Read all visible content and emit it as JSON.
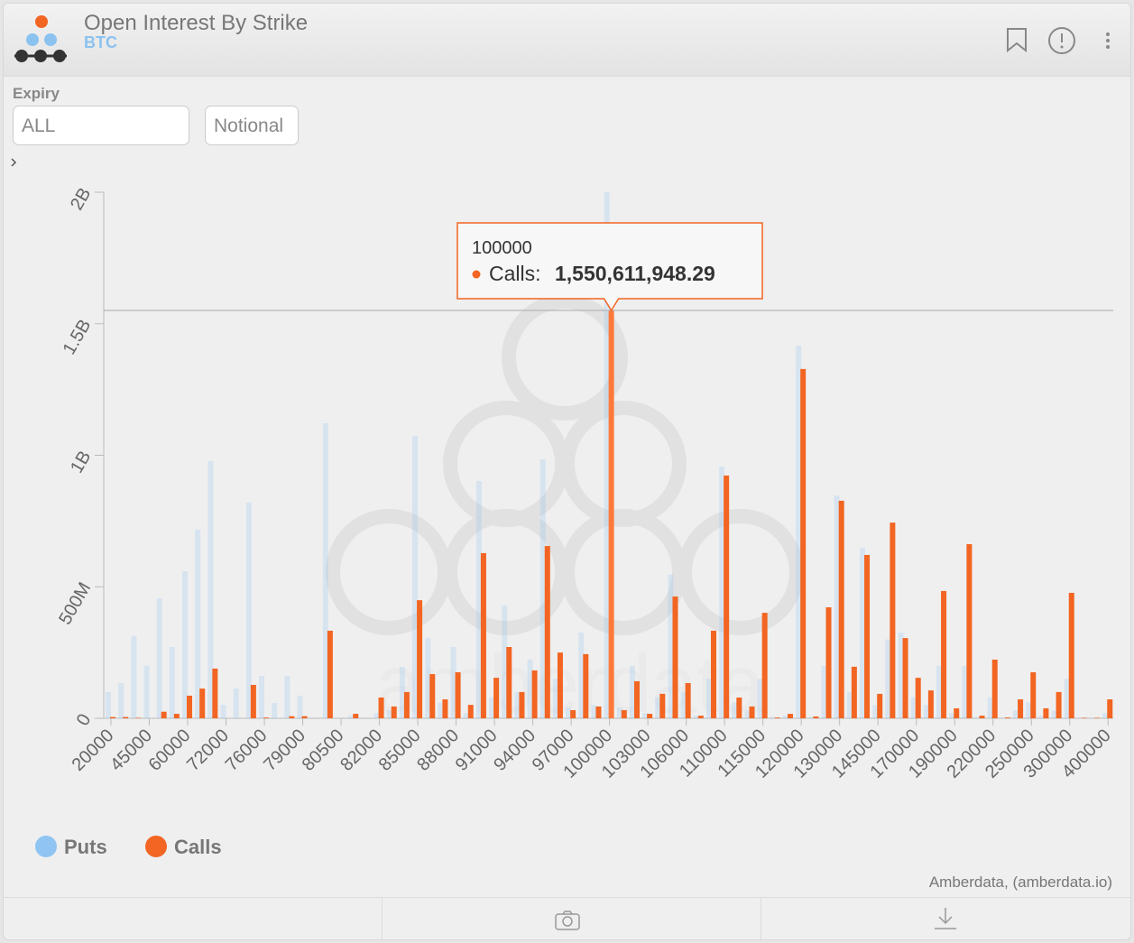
{
  "header": {
    "title": "Open Interest By Strike",
    "subtitle": "BTC"
  },
  "controls": {
    "expiry_label": "Expiry",
    "expiry_value": "ALL",
    "mode": "Notional"
  },
  "watermark": "amberdata",
  "credit": "Amberdata, (amberdata.io)",
  "chart_data": {
    "type": "bar",
    "categories": [
      "20000",
      null,
      null,
      "45000",
      null,
      null,
      "60000",
      null,
      null,
      "72000",
      null,
      null,
      "76000",
      null,
      null,
      "79000",
      null,
      null,
      "80500",
      null,
      null,
      "82000",
      null,
      null,
      "85000",
      null,
      null,
      "88000",
      null,
      null,
      "91000",
      null,
      null,
      "94000",
      null,
      null,
      "97000",
      null,
      null,
      "100000",
      null,
      null,
      "103000",
      null,
      null,
      "106000",
      null,
      null,
      "110000",
      null,
      null,
      "115000",
      null,
      null,
      "120000",
      null,
      null,
      "130000",
      null,
      null,
      "145000",
      null,
      null,
      "170000",
      null,
      null,
      "190000",
      null,
      null,
      "220000",
      null,
      null,
      "250000",
      null,
      null,
      "300000",
      null,
      null,
      "400000"
    ],
    "series": [
      {
        "name": "Puts",
        "color": "#90c4f2",
        "values": [
          100000000.0,
          134000000.0,
          313000000.0,
          200000000.0,
          456000000.0,
          271000000.0,
          559000000.0,
          717000000.0,
          978000000.0,
          51000000.0,
          113000000.0,
          820000000.0,
          161000000.0,
          58000000.0,
          161000000.0,
          86000000.0,
          0,
          1122000000.0,
          0,
          10000000.0,
          0,
          20000000.0,
          30000000.0,
          196000000.0,
          1074000000.0,
          305000000.0,
          60000000.0,
          271000000.0,
          20000000.0,
          902000000.0,
          80000000.0,
          429000000.0,
          100000000.0,
          223000000.0,
          985000000.0,
          150000000.0,
          40000000.0,
          326000000.0,
          50000000.0,
          2000000000.0,
          40000000.0,
          200000000.0,
          20000000.0,
          80000000.0,
          546000000.0,
          100000000.0,
          10000000.0,
          150000000.0,
          957000000.0,
          60000000.0,
          30000000.0,
          150000000.0,
          5000000.0,
          10000000.0,
          1417000000.0,
          5000000.0,
          200000000.0,
          847000000.0,
          100000000.0,
          648000000.0,
          50000000.0,
          300000000.0,
          326000000.0,
          80000000.0,
          50000000.0,
          200000000.0,
          20000000.0,
          200000000.0,
          5000000.0,
          80000000.0,
          2000000.0,
          30000000.0,
          60000000.0,
          10000000.0,
          30000000.0,
          150000000.0,
          1000000.0,
          1000000.0,
          20000000.0
        ]
      },
      {
        "name": "Calls",
        "color": "#f26522",
        "values": [
          5000000.0,
          5000000.0,
          2000000.0,
          0,
          25000000.0,
          17000000.0,
          86000000.0,
          113000000.0,
          189000000.0,
          0,
          0,
          127000000.0,
          3000000.0,
          0,
          8000000.0,
          8000000.0,
          0,
          333000000.0,
          0,
          17000000.0,
          0,
          79000000.0,
          45000000.0,
          100000000.0,
          449000000.0,
          168000000.0,
          72000000.0,
          175000000.0,
          51000000.0,
          628000000.0,
          154000000.0,
          271000000.0,
          100000000.0,
          182000000.0,
          655000000.0,
          250000000.0,
          31000000.0,
          244000000.0,
          45000000.0,
          1550611948.29,
          31000000.0,
          141000000.0,
          17000000.0,
          93000000.0,
          463000000.0,
          134000000.0,
          10000000.0,
          333000000.0,
          923000000.0,
          79000000.0,
          45000000.0,
          401000000.0,
          3000000.0,
          17000000.0,
          1328000000.0,
          7000000.0,
          422000000.0,
          827000000.0,
          196000000.0,
          621000000.0,
          93000000.0,
          744000000.0,
          305000000.0,
          154000000.0,
          106000000.0,
          484000000.0,
          38000000.0,
          662000000.0,
          10000000.0,
          223000000.0,
          3000000.0,
          72000000.0,
          175000000.0,
          38000000.0,
          100000000.0,
          477000000.0,
          2000000.0,
          2000000.0,
          72000000.0
        ]
      }
    ],
    "ylim": [
      0,
      2000000000
    ],
    "yticks": [
      0,
      {
        "value": 500000000,
        "label": "500M"
      },
      {
        "value": 1000000000,
        "label": "1B"
      },
      {
        "value": 1500000000,
        "label": "1.5B"
      },
      {
        "value": 2000000000,
        "label": "2B"
      }
    ],
    "tooltip": {
      "label": "Calls:",
      "value": "1,550,611,948.29"
    },
    "legend": "bottom-left"
  }
}
